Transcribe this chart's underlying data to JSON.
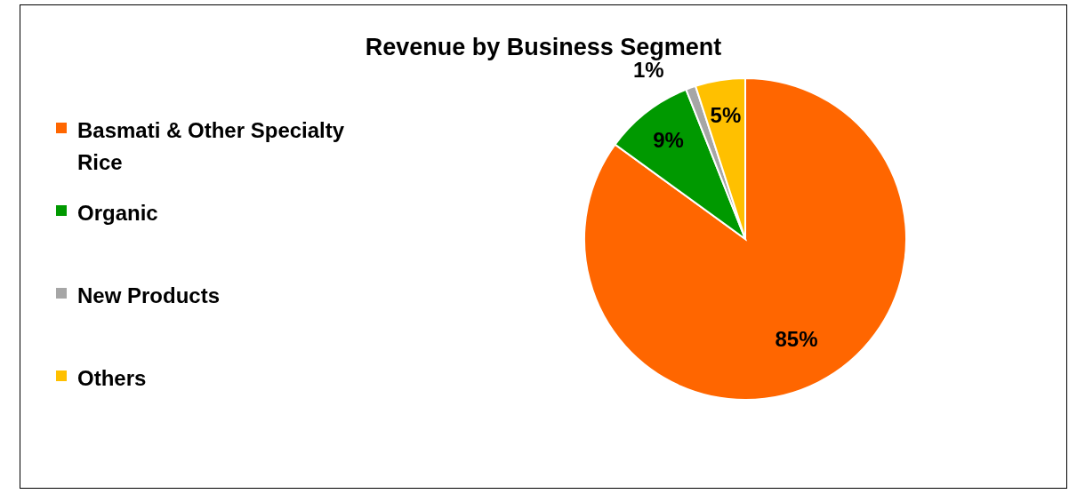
{
  "chart_data": {
    "type": "pie",
    "title": "Revenue by Business Segment",
    "categories": [
      "Basmati & Other Specialty Rice",
      "Organic",
      "New Products",
      "Others"
    ],
    "values": [
      85,
      9,
      1,
      5
    ],
    "colors": [
      "#ff6600",
      "#009900",
      "#a6a6a6",
      "#ffc000"
    ],
    "value_labels": [
      "85%",
      "9%",
      "1%",
      "5%"
    ],
    "legend": "left"
  }
}
